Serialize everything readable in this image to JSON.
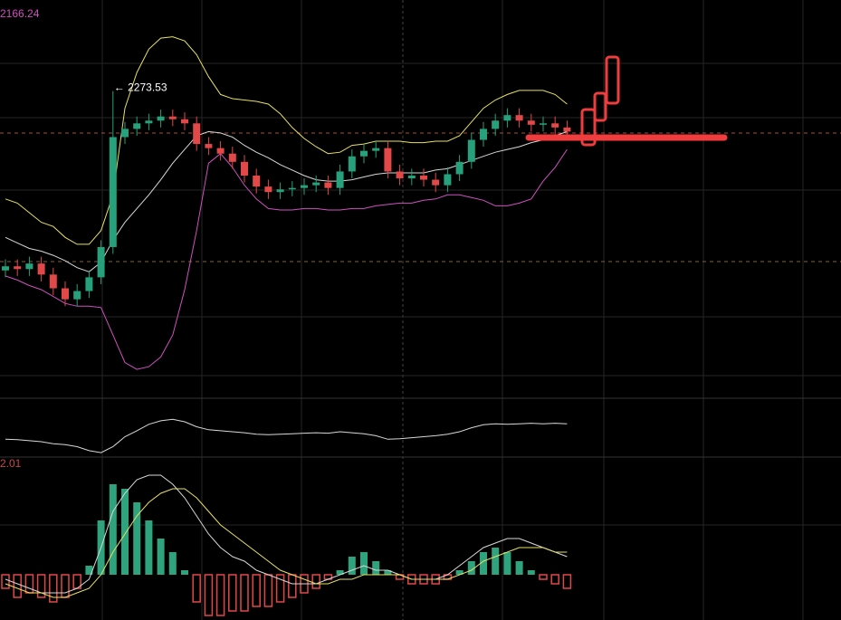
{
  "chart_data": [
    {
      "type": "candlestick",
      "label": "2166.24",
      "annotation": "← 2273.53",
      "up_color": "#26a17b",
      "down_color": "#e24848",
      "label_color": "#d050c0",
      "ylim": [
        2050,
        2320
      ],
      "open": [
        2143,
        2146,
        2144,
        2148,
        2140,
        2130,
        2122,
        2128,
        2138,
        2160,
        2240,
        2246,
        2250,
        2252,
        2255,
        2253,
        2250,
        2235,
        2232,
        2228,
        2222,
        2212,
        2204,
        2200,
        2202,
        2203,
        2205,
        2207,
        2203,
        2215,
        2226,
        2230,
        2232,
        2215,
        2210,
        2212,
        2209,
        2205,
        2213,
        2222,
        2238,
        2246,
        2252,
        2256,
        2252,
        2249,
        2250,
        2247
      ],
      "high": [
        2151,
        2151,
        2153,
        2153,
        2145,
        2135,
        2133,
        2143,
        2165,
        2273.53,
        2251,
        2255,
        2257,
        2260,
        2260,
        2258,
        2255,
        2240,
        2237,
        2233,
        2227,
        2217,
        2209,
        2207,
        2208,
        2210,
        2212,
        2212,
        2220,
        2231,
        2235,
        2237,
        2237,
        2220,
        2217,
        2217,
        2214,
        2218,
        2227,
        2243,
        2251,
        2257,
        2261,
        2261,
        2257,
        2255,
        2255,
        2252
      ],
      "low": [
        2138,
        2139,
        2139,
        2135,
        2125,
        2117,
        2117,
        2123,
        2133,
        2155,
        2235,
        2241,
        2245,
        2247,
        2248,
        2245,
        2230,
        2227,
        2223,
        2217,
        2207,
        2199,
        2195,
        2195,
        2197,
        2198,
        2200,
        2198,
        2198,
        2210,
        2221,
        2225,
        2210,
        2205,
        2205,
        2204,
        2200,
        2200,
        2208,
        2217,
        2233,
        2241,
        2247,
        2247,
        2244,
        2244,
        2242,
        2239
      ],
      "close": [
        2146,
        2144,
        2148,
        2140,
        2130,
        2122,
        2128,
        2138,
        2160,
        2240,
        2246,
        2250,
        2252,
        2255,
        2253,
        2250,
        2235,
        2232,
        2228,
        2222,
        2212,
        2204,
        2200,
        2202,
        2203,
        2205,
        2207,
        2203,
        2215,
        2226,
        2230,
        2232,
        2215,
        2210,
        2212,
        2209,
        2205,
        2213,
        2222,
        2238,
        2246,
        2252,
        2256,
        2252,
        2249,
        2250,
        2247,
        2244
      ],
      "series": [
        {
          "color": "#e8e060",
          "values": [
            2195,
            2192,
            2185,
            2178,
            2175,
            2167,
            2162,
            2162,
            2172,
            2198,
            2261,
            2287,
            2304,
            2312,
            2313,
            2310,
            2300,
            2284,
            2271,
            2268,
            2267,
            2266,
            2264,
            2257,
            2247,
            2239,
            2233,
            2228,
            2229,
            2234,
            2235,
            2237,
            2237,
            2237,
            2236,
            2236,
            2237,
            2237,
            2241,
            2251,
            2261,
            2267,
            2271,
            2274,
            2274,
            2274,
            2271,
            2264
          ]
        },
        {
          "color": "#d8d8d8",
          "values": [
            2167,
            2163,
            2159,
            2157,
            2154,
            2150,
            2145,
            2142,
            2149,
            2165,
            2178,
            2188,
            2198,
            2209,
            2221,
            2231,
            2241,
            2244,
            2243,
            2240,
            2234,
            2229,
            2225,
            2220,
            2216,
            2212,
            2209,
            2208,
            2208,
            2209,
            2211,
            2213,
            2214,
            2214,
            2214,
            2214,
            2216,
            2217,
            2220,
            2223,
            2226,
            2229,
            2231,
            2233,
            2236,
            2238,
            2241,
            2244
          ]
        },
        {
          "color": "#d050c0",
          "values": [
            2139,
            2136,
            2132,
            2129,
            2124,
            2119,
            2117,
            2117,
            2116,
            2096,
            2076,
            2071,
            2073,
            2080,
            2096,
            2129,
            2172,
            2221,
            2228,
            2218,
            2205,
            2195,
            2188,
            2187,
            2187,
            2188,
            2188,
            2187,
            2187,
            2188,
            2188,
            2190,
            2191,
            2192,
            2192,
            2194,
            2195,
            2198,
            2198,
            2196,
            2194,
            2190,
            2190,
            2192,
            2195,
            2208,
            2218,
            2231
          ]
        }
      ]
    },
    {
      "type": "line",
      "color": "#d8d8d8",
      "ylim": [
        0,
        100
      ],
      "values": [
        45,
        44,
        42,
        40,
        36,
        34,
        30,
        22,
        18,
        30,
        50,
        62,
        75,
        82,
        85,
        80,
        70,
        64,
        62,
        60,
        58,
        55,
        54,
        55,
        56,
        57,
        58,
        57,
        60,
        58,
        56,
        52,
        45,
        46,
        48,
        50,
        52,
        55,
        60,
        68,
        74,
        76,
        75,
        76,
        77,
        76,
        77,
        76
      ]
    },
    {
      "type": "macd",
      "label": "2.01",
      "label_color": "#c84848",
      "up_color": "#2fa37e",
      "down_color": "#e04848",
      "ylim": [
        -10,
        25
      ],
      "histogram": [
        -3,
        -5,
        -4,
        -5,
        -6,
        -5,
        -3,
        2,
        12,
        20,
        19,
        16,
        12,
        8,
        5,
        1,
        -6,
        -9,
        -9,
        -8,
        -8,
        -7,
        -7,
        -6,
        -5,
        -4,
        -3,
        -1,
        1,
        4,
        5,
        3,
        1,
        -1,
        -2,
        -2,
        -2,
        -1,
        1,
        3,
        5,
        6,
        5,
        3,
        1,
        -1,
        -2,
        -3
      ],
      "series": [
        {
          "color": "#d8d8d8",
          "values": [
            -1,
            -2,
            -3,
            -4,
            -4,
            -4,
            -3,
            -1,
            6,
            14,
            18,
            21,
            22,
            22,
            20,
            17,
            13,
            9,
            6,
            4,
            3,
            1,
            0,
            -1,
            -2,
            -2,
            -2,
            -1,
            0,
            1,
            2,
            1,
            1,
            0,
            -1,
            -1,
            -1,
            0,
            2,
            4,
            6,
            7,
            8,
            8,
            7,
            6,
            5,
            4
          ]
        },
        {
          "color": "#e8e060",
          "values": [
            -2,
            -3,
            -4,
            -4,
            -5,
            -5,
            -4,
            -3,
            0,
            5,
            9,
            13,
            16,
            18,
            19,
            19,
            17,
            14,
            11,
            9,
            7,
            5,
            3,
            1,
            0,
            -1,
            -2,
            -2,
            -1,
            -1,
            0,
            0,
            0,
            0,
            -1,
            -1,
            -1,
            -1,
            0,
            1,
            3,
            4,
            5,
            6,
            6,
            6,
            5,
            5
          ]
        }
      ]
    }
  ]
}
